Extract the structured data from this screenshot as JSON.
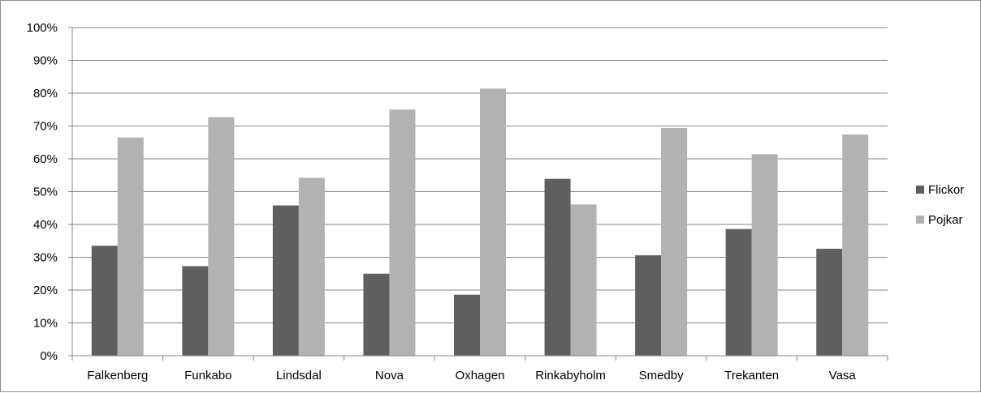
{
  "chart_data": {
    "type": "bar",
    "categories": [
      "Falkenberg",
      "Funkabo",
      "Lindsdal",
      "Nova",
      "Oxhagen",
      "Rinkabyholm",
      "Smedby",
      "Trekanten",
      "Vasa"
    ],
    "series": [
      {
        "name": "Flickor",
        "color": "#5f5f5f",
        "values": [
          33.5,
          27.3,
          45.8,
          25.0,
          18.6,
          53.9,
          30.6,
          38.6,
          32.6
        ]
      },
      {
        "name": "Pojkar",
        "color": "#b2b2b2",
        "values": [
          66.5,
          72.7,
          54.2,
          75.0,
          81.4,
          46.1,
          69.4,
          61.4,
          67.4
        ]
      }
    ],
    "yticks": [
      "0%",
      "10%",
      "20%",
      "30%",
      "40%",
      "50%",
      "60%",
      "70%",
      "80%",
      "90%",
      "100%"
    ],
    "ylim": [
      0,
      100
    ],
    "grid": true,
    "legend_position": "right"
  }
}
